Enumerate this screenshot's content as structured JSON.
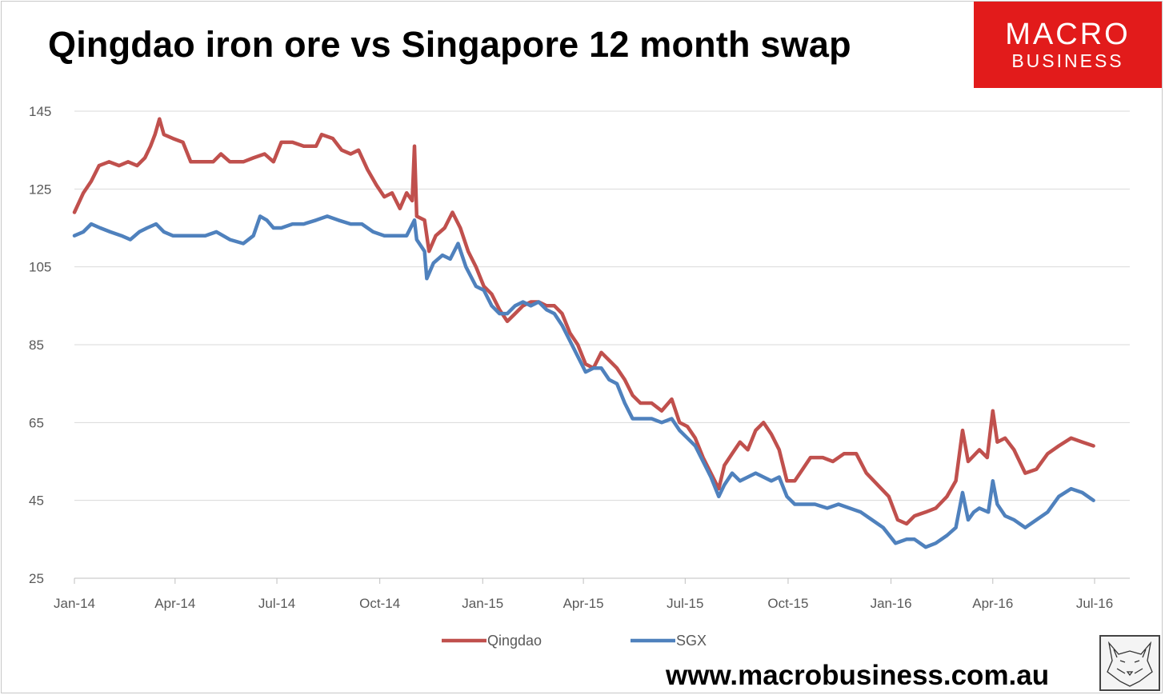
{
  "title": "Qingdao iron ore vs Singapore 12 month swap",
  "logo": {
    "line1": "MACRO",
    "line2": "BUSINESS",
    "color": "#e21b1b"
  },
  "website": "www.macrobusiness.com.au",
  "fox_icon": "fox-sketch-icon",
  "chart_data": {
    "type": "line",
    "title": "Qingdao iron ore vs Singapore 12 month swap",
    "xlabel": "",
    "ylabel": "",
    "x_range": [
      "2014-01-01",
      "2016-07-01"
    ],
    "ylim": [
      25,
      145
    ],
    "y_ticks": [
      25,
      45,
      65,
      85,
      105,
      125,
      145
    ],
    "x_ticks": [
      {
        "label": "Jan-14",
        "date": "2014-01-01"
      },
      {
        "label": "Apr-14",
        "date": "2014-04-01"
      },
      {
        "label": "Jul-14",
        "date": "2014-07-01"
      },
      {
        "label": "Oct-14",
        "date": "2014-10-01"
      },
      {
        "label": "Jan-15",
        "date": "2015-01-01"
      },
      {
        "label": "Apr-15",
        "date": "2015-04-01"
      },
      {
        "label": "Jul-15",
        "date": "2015-07-01"
      },
      {
        "label": "Oct-15",
        "date": "2015-10-01"
      },
      {
        "label": "Jan-16",
        "date": "2016-01-01"
      },
      {
        "label": "Apr-16",
        "date": "2016-04-01"
      },
      {
        "label": "Jul-16",
        "date": "2016-07-01"
      }
    ],
    "grid": "horizontal",
    "legend_position": "bottom",
    "series": [
      {
        "name": "Qingdao",
        "color": "#c0504d",
        "points": [
          [
            "2014-01-01",
            119
          ],
          [
            "2014-01-09",
            124
          ],
          [
            "2014-01-16",
            127
          ],
          [
            "2014-01-23",
            131
          ],
          [
            "2014-02-01",
            132
          ],
          [
            "2014-02-10",
            131
          ],
          [
            "2014-02-18",
            132
          ],
          [
            "2014-02-26",
            131
          ],
          [
            "2014-03-05",
            133
          ],
          [
            "2014-03-10",
            136
          ],
          [
            "2014-03-14",
            139
          ],
          [
            "2014-03-18",
            143
          ],
          [
            "2014-03-22",
            139
          ],
          [
            "2014-03-30",
            138
          ],
          [
            "2014-04-08",
            137
          ],
          [
            "2014-04-15",
            132
          ],
          [
            "2014-04-25",
            132
          ],
          [
            "2014-05-05",
            132
          ],
          [
            "2014-05-12",
            134
          ],
          [
            "2014-05-20",
            132
          ],
          [
            "2014-06-01",
            132
          ],
          [
            "2014-06-10",
            133
          ],
          [
            "2014-06-20",
            134
          ],
          [
            "2014-06-28",
            132
          ],
          [
            "2014-07-05",
            137
          ],
          [
            "2014-07-15",
            137
          ],
          [
            "2014-07-25",
            136
          ],
          [
            "2014-08-05",
            136
          ],
          [
            "2014-08-10",
            139
          ],
          [
            "2014-08-20",
            138
          ],
          [
            "2014-08-28",
            135
          ],
          [
            "2014-09-05",
            134
          ],
          [
            "2014-09-12",
            135
          ],
          [
            "2014-09-20",
            130
          ],
          [
            "2014-09-28",
            126
          ],
          [
            "2014-10-05",
            123
          ],
          [
            "2014-10-12",
            124
          ],
          [
            "2014-10-19",
            120
          ],
          [
            "2014-10-25",
            124
          ],
          [
            "2014-10-30",
            122
          ],
          [
            "2014-11-01",
            136
          ],
          [
            "2014-11-03",
            118
          ],
          [
            "2014-11-10",
            117
          ],
          [
            "2014-11-14",
            109
          ],
          [
            "2014-11-20",
            113
          ],
          [
            "2014-11-28",
            115
          ],
          [
            "2014-12-05",
            119
          ],
          [
            "2014-12-12",
            115
          ],
          [
            "2014-12-19",
            109
          ],
          [
            "2014-12-26",
            105
          ],
          [
            "2015-01-02",
            100
          ],
          [
            "2015-01-09",
            98
          ],
          [
            "2015-01-16",
            94
          ],
          [
            "2015-01-23",
            91
          ],
          [
            "2015-01-30",
            93
          ],
          [
            "2015-02-06",
            95
          ],
          [
            "2015-02-13",
            96
          ],
          [
            "2015-02-20",
            96
          ],
          [
            "2015-02-27",
            95
          ],
          [
            "2015-03-06",
            95
          ],
          [
            "2015-03-13",
            93
          ],
          [
            "2015-03-20",
            88
          ],
          [
            "2015-03-27",
            85
          ],
          [
            "2015-04-03",
            80
          ],
          [
            "2015-04-10",
            79
          ],
          [
            "2015-04-17",
            83
          ],
          [
            "2015-04-24",
            81
          ],
          [
            "2015-05-01",
            79
          ],
          [
            "2015-05-08",
            76
          ],
          [
            "2015-05-15",
            72
          ],
          [
            "2015-05-22",
            70
          ],
          [
            "2015-06-01",
            70
          ],
          [
            "2015-06-10",
            68
          ],
          [
            "2015-06-19",
            71
          ],
          [
            "2015-06-26",
            65
          ],
          [
            "2015-07-03",
            64
          ],
          [
            "2015-07-10",
            61
          ],
          [
            "2015-07-17",
            56
          ],
          [
            "2015-07-24",
            52
          ],
          [
            "2015-07-31",
            48
          ],
          [
            "2015-08-05",
            54
          ],
          [
            "2015-08-12",
            57
          ],
          [
            "2015-08-19",
            60
          ],
          [
            "2015-08-26",
            58
          ],
          [
            "2015-09-02",
            63
          ],
          [
            "2015-09-09",
            65
          ],
          [
            "2015-09-16",
            62
          ],
          [
            "2015-09-23",
            58
          ],
          [
            "2015-09-30",
            50
          ],
          [
            "2015-10-07",
            50
          ],
          [
            "2015-10-14",
            53
          ],
          [
            "2015-10-21",
            56
          ],
          [
            "2015-11-01",
            56
          ],
          [
            "2015-11-10",
            55
          ],
          [
            "2015-11-20",
            57
          ],
          [
            "2015-12-01",
            57
          ],
          [
            "2015-12-10",
            52
          ],
          [
            "2015-12-20",
            49
          ],
          [
            "2015-12-30",
            46
          ],
          [
            "2016-01-07",
            40
          ],
          [
            "2016-01-15",
            39
          ],
          [
            "2016-01-22",
            41
          ],
          [
            "2016-02-01",
            42
          ],
          [
            "2016-02-10",
            43
          ],
          [
            "2016-02-20",
            46
          ],
          [
            "2016-02-28",
            50
          ],
          [
            "2016-03-05",
            63
          ],
          [
            "2016-03-10",
            55
          ],
          [
            "2016-03-20",
            58
          ],
          [
            "2016-03-27",
            56
          ],
          [
            "2016-04-01",
            68
          ],
          [
            "2016-04-05",
            60
          ],
          [
            "2016-04-12",
            61
          ],
          [
            "2016-04-20",
            58
          ],
          [
            "2016-04-30",
            52
          ],
          [
            "2016-05-10",
            53
          ],
          [
            "2016-05-20",
            57
          ],
          [
            "2016-05-30",
            59
          ],
          [
            "2016-06-10",
            61
          ],
          [
            "2016-06-20",
            60
          ],
          [
            "2016-06-30",
            59
          ]
        ]
      },
      {
        "name": "SGX",
        "color": "#4f81bd",
        "points": [
          [
            "2014-01-01",
            113
          ],
          [
            "2014-01-09",
            114
          ],
          [
            "2014-01-16",
            116
          ],
          [
            "2014-01-24",
            115
          ],
          [
            "2014-02-02",
            114
          ],
          [
            "2014-02-12",
            113
          ],
          [
            "2014-02-20",
            112
          ],
          [
            "2014-02-28",
            114
          ],
          [
            "2014-03-07",
            115
          ],
          [
            "2014-03-15",
            116
          ],
          [
            "2014-03-22",
            114
          ],
          [
            "2014-03-30",
            113
          ],
          [
            "2014-04-08",
            113
          ],
          [
            "2014-04-18",
            113
          ],
          [
            "2014-04-28",
            113
          ],
          [
            "2014-05-08",
            114
          ],
          [
            "2014-05-20",
            112
          ],
          [
            "2014-06-01",
            111
          ],
          [
            "2014-06-10",
            113
          ],
          [
            "2014-06-16",
            118
          ],
          [
            "2014-06-22",
            117
          ],
          [
            "2014-06-28",
            115
          ],
          [
            "2014-07-05",
            115
          ],
          [
            "2014-07-15",
            116
          ],
          [
            "2014-07-25",
            116
          ],
          [
            "2014-08-05",
            117
          ],
          [
            "2014-08-15",
            118
          ],
          [
            "2014-08-25",
            117
          ],
          [
            "2014-09-05",
            116
          ],
          [
            "2014-09-15",
            116
          ],
          [
            "2014-09-25",
            114
          ],
          [
            "2014-10-05",
            113
          ],
          [
            "2014-10-15",
            113
          ],
          [
            "2014-10-25",
            113
          ],
          [
            "2014-11-01",
            117
          ],
          [
            "2014-11-03",
            112
          ],
          [
            "2014-11-10",
            109
          ],
          [
            "2014-11-12",
            102
          ],
          [
            "2014-11-18",
            106
          ],
          [
            "2014-11-26",
            108
          ],
          [
            "2014-12-03",
            107
          ],
          [
            "2014-12-10",
            111
          ],
          [
            "2014-12-17",
            105
          ],
          [
            "2014-12-26",
            100
          ],
          [
            "2015-01-02",
            99
          ],
          [
            "2015-01-09",
            95
          ],
          [
            "2015-01-16",
            93
          ],
          [
            "2015-01-23",
            93
          ],
          [
            "2015-01-30",
            95
          ],
          [
            "2015-02-06",
            96
          ],
          [
            "2015-02-13",
            95
          ],
          [
            "2015-02-20",
            96
          ],
          [
            "2015-02-27",
            94
          ],
          [
            "2015-03-06",
            93
          ],
          [
            "2015-03-13",
            90
          ],
          [
            "2015-03-20",
            86
          ],
          [
            "2015-03-27",
            82
          ],
          [
            "2015-04-03",
            78
          ],
          [
            "2015-04-10",
            79
          ],
          [
            "2015-04-17",
            79
          ],
          [
            "2015-04-24",
            76
          ],
          [
            "2015-05-01",
            75
          ],
          [
            "2015-05-08",
            70
          ],
          [
            "2015-05-15",
            66
          ],
          [
            "2015-05-22",
            66
          ],
          [
            "2015-06-01",
            66
          ],
          [
            "2015-06-10",
            65
          ],
          [
            "2015-06-19",
            66
          ],
          [
            "2015-06-26",
            63
          ],
          [
            "2015-07-03",
            61
          ],
          [
            "2015-07-10",
            59
          ],
          [
            "2015-07-17",
            55
          ],
          [
            "2015-07-24",
            51
          ],
          [
            "2015-07-31",
            46
          ],
          [
            "2015-08-05",
            49
          ],
          [
            "2015-08-12",
            52
          ],
          [
            "2015-08-19",
            50
          ],
          [
            "2015-08-26",
            51
          ],
          [
            "2015-09-02",
            52
          ],
          [
            "2015-09-09",
            51
          ],
          [
            "2015-09-16",
            50
          ],
          [
            "2015-09-23",
            51
          ],
          [
            "2015-09-30",
            46
          ],
          [
            "2015-10-07",
            44
          ],
          [
            "2015-10-15",
            44
          ],
          [
            "2015-10-25",
            44
          ],
          [
            "2015-11-05",
            43
          ],
          [
            "2015-11-15",
            44
          ],
          [
            "2015-11-25",
            43
          ],
          [
            "2015-12-05",
            42
          ],
          [
            "2015-12-15",
            40
          ],
          [
            "2015-12-25",
            38
          ],
          [
            "2016-01-05",
            34
          ],
          [
            "2016-01-15",
            35
          ],
          [
            "2016-01-22",
            35
          ],
          [
            "2016-02-01",
            33
          ],
          [
            "2016-02-10",
            34
          ],
          [
            "2016-02-20",
            36
          ],
          [
            "2016-02-28",
            38
          ],
          [
            "2016-03-05",
            47
          ],
          [
            "2016-03-10",
            40
          ],
          [
            "2016-03-15",
            42
          ],
          [
            "2016-03-20",
            43
          ],
          [
            "2016-03-28",
            42
          ],
          [
            "2016-04-01",
            50
          ],
          [
            "2016-04-05",
            44
          ],
          [
            "2016-04-12",
            41
          ],
          [
            "2016-04-20",
            40
          ],
          [
            "2016-04-30",
            38
          ],
          [
            "2016-05-10",
            40
          ],
          [
            "2016-05-20",
            42
          ],
          [
            "2016-05-30",
            46
          ],
          [
            "2016-06-10",
            48
          ],
          [
            "2016-06-20",
            47
          ],
          [
            "2016-06-30",
            45
          ]
        ]
      }
    ]
  }
}
